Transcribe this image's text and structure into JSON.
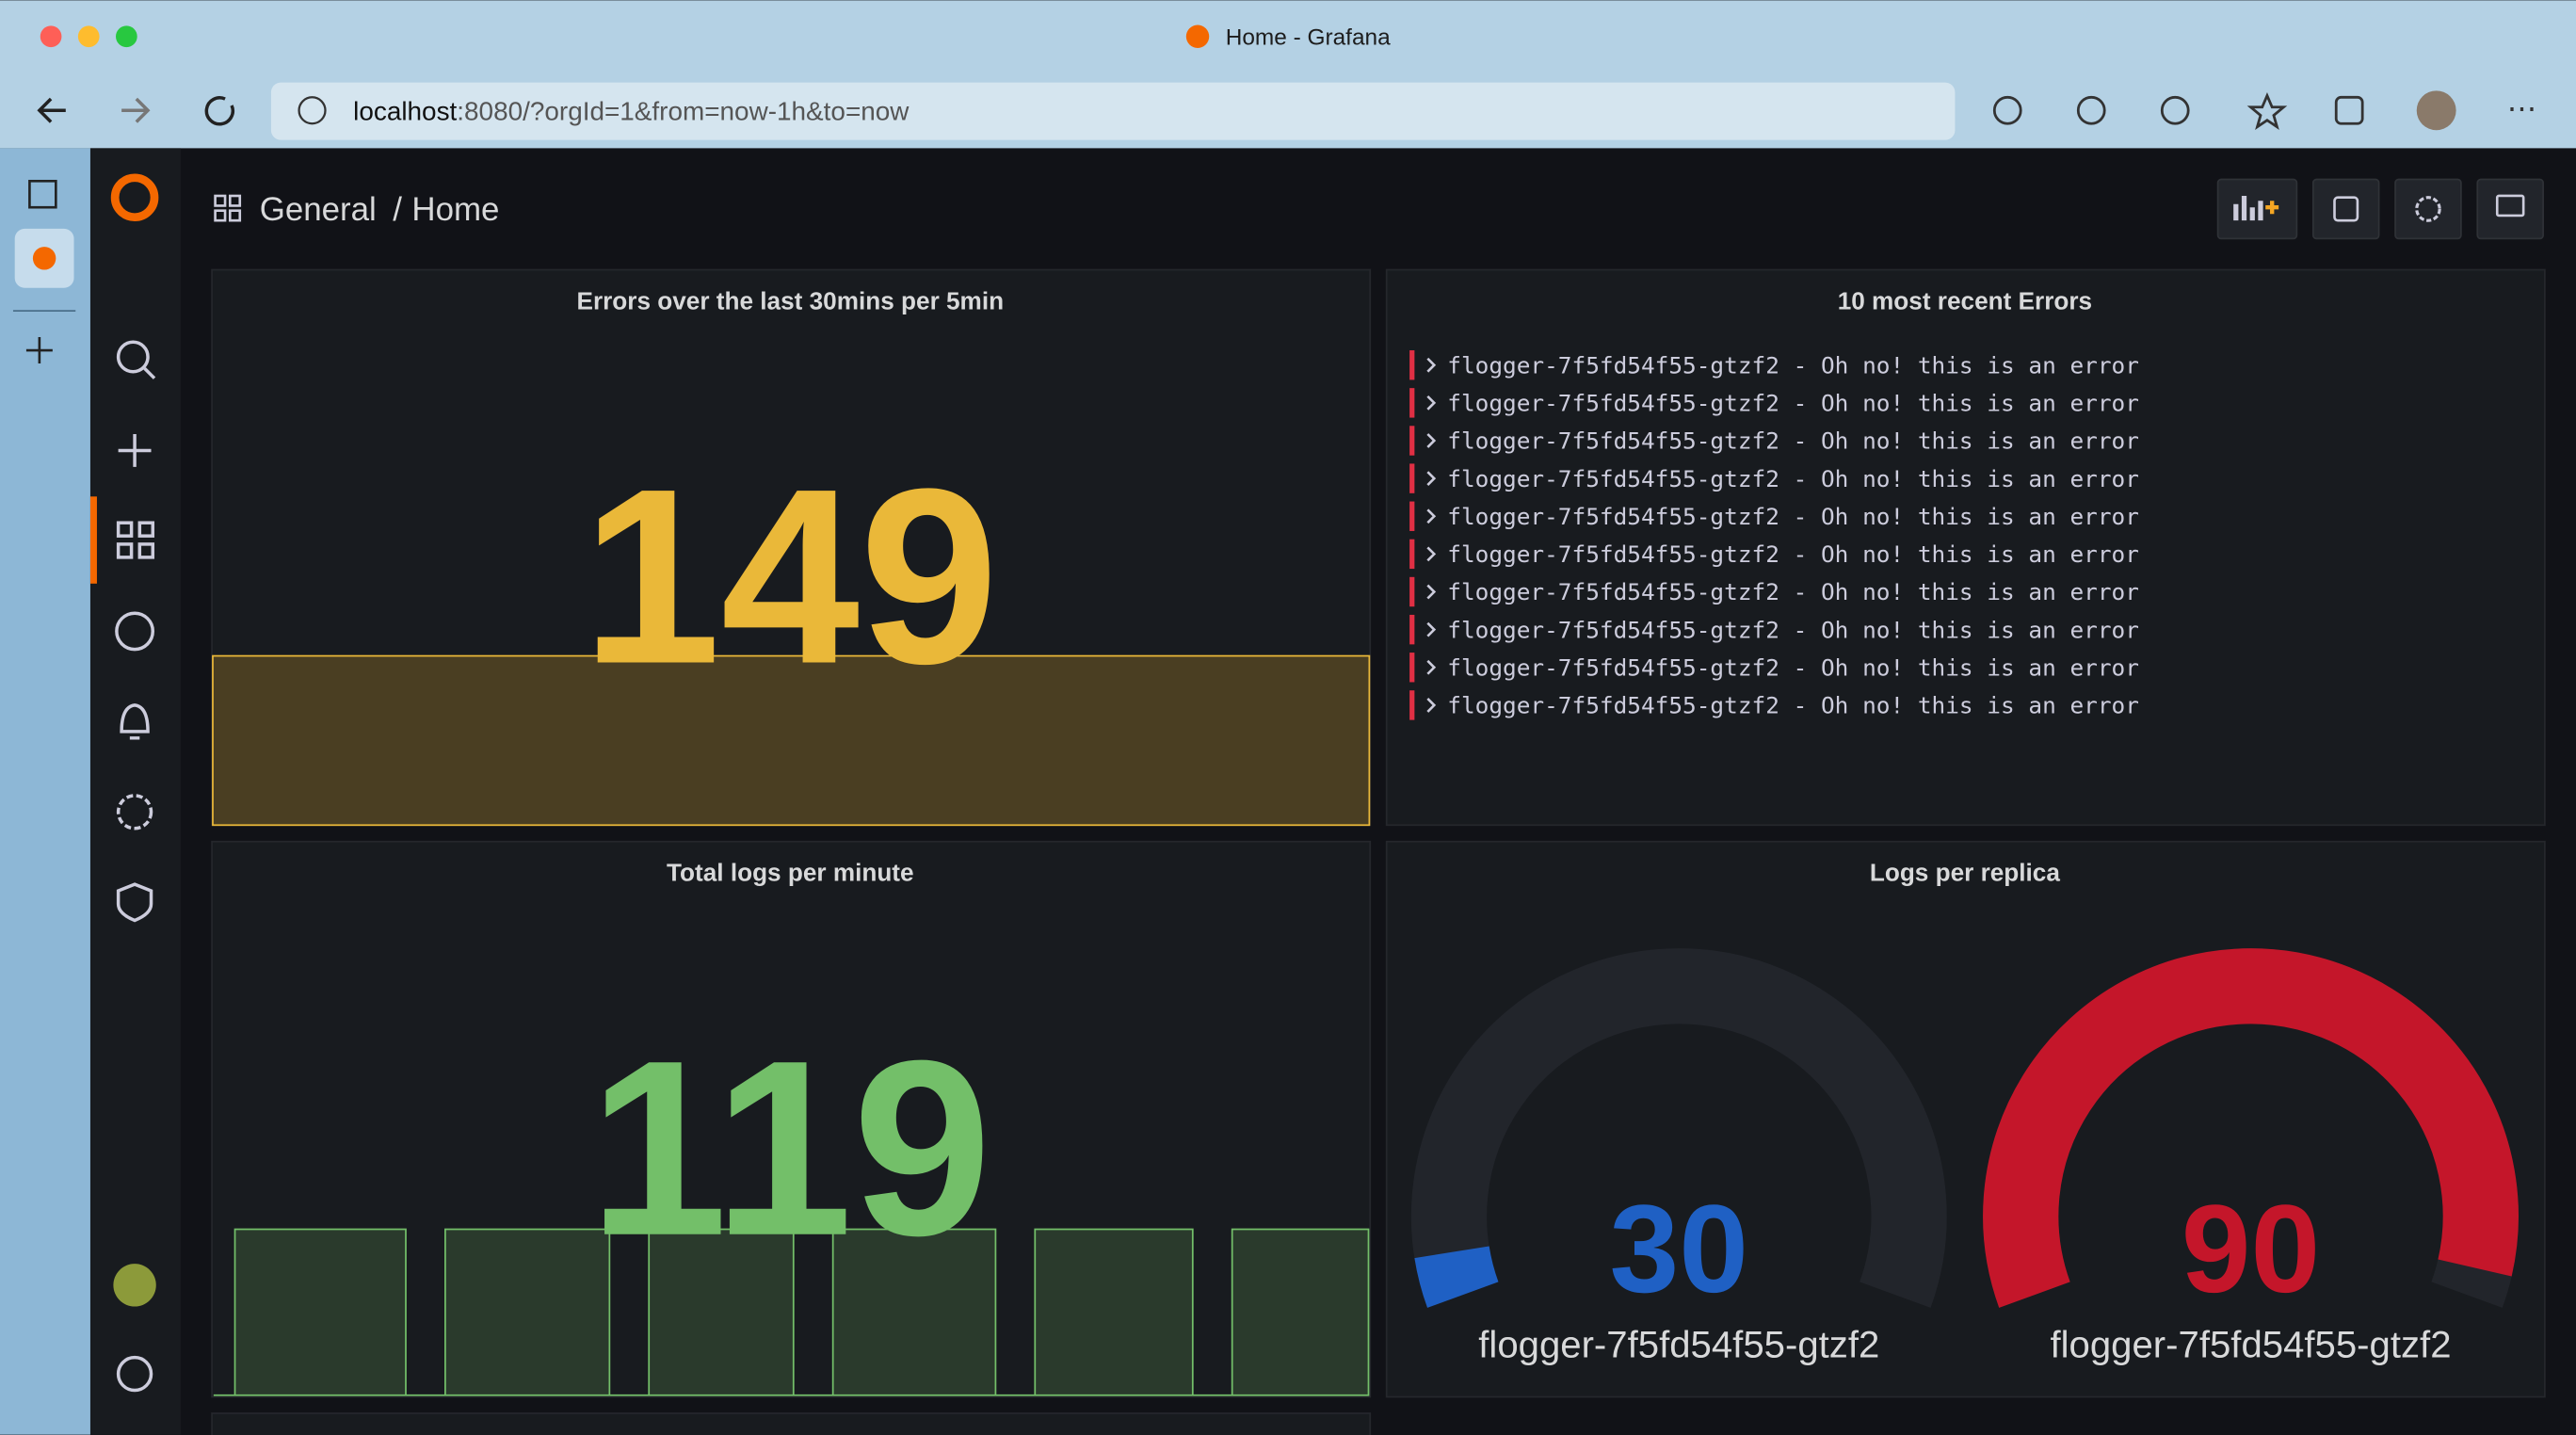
{
  "window": {
    "title": "Home - Grafana",
    "url_host": "localhost",
    "url_rest": ":8080/?orgId=1&from=now-1h&to=now"
  },
  "breadcrumb": {
    "folder": "General",
    "separator": "/",
    "dashboard": "Home"
  },
  "panels": [
    {
      "title": "Errors over the last 30mins per 5min",
      "value": 149
    },
    {
      "title": "10 most recent Errors",
      "lines": [
        "flogger-7f5fd54f55-gtzf2 - Oh no! this is an error",
        "flogger-7f5fd54f55-gtzf2 - Oh no! this is an error",
        "flogger-7f5fd54f55-gtzf2 - Oh no! this is an error",
        "flogger-7f5fd54f55-gtzf2 - Oh no! this is an error",
        "flogger-7f5fd54f55-gtzf2 - Oh no! this is an error",
        "flogger-7f5fd54f55-gtzf2 - Oh no! this is an error",
        "flogger-7f5fd54f55-gtzf2 - Oh no! this is an error",
        "flogger-7f5fd54f55-gtzf2 - Oh no! this is an error",
        "flogger-7f5fd54f55-gtzf2 - Oh no! this is an error",
        "flogger-7f5fd54f55-gtzf2 - Oh no! this is an error"
      ]
    },
    {
      "title": "Total logs per minute",
      "value": 119
    },
    {
      "title": "Logs per replica",
      "gauges": [
        {
          "value": 30,
          "label": "flogger-7f5fd54f55-gtzf2"
        },
        {
          "value": 90,
          "label": "flogger-7f5fd54f55-gtzf2"
        }
      ]
    }
  ]
}
